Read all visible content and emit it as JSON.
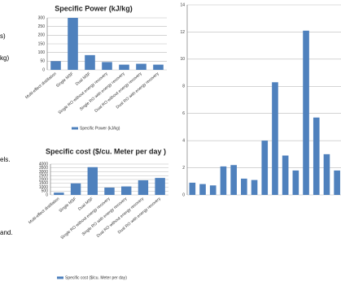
{
  "fragments": [
    "s)",
    "kg)",
    "els.",
    "and."
  ],
  "chart_data": [
    {
      "type": "bar",
      "title": "Specific Power (kJ/kg)",
      "legend": "Specific Power (kJ/kg)",
      "color": "#4f81bd",
      "grid": true,
      "categories": [
        "Multi-effect distillation",
        "Single MSF",
        "Dual MSF",
        "Single RO without energy recovery",
        "Single RO with energy recovery",
        "Dual RO without energy recovery",
        "Dual RO with energy recovery"
      ],
      "values": [
        50,
        300,
        85,
        45,
        30,
        35,
        30
      ],
      "ylim": [
        0,
        300
      ],
      "yticks": [
        0,
        50,
        100,
        150,
        200,
        250,
        300
      ]
    },
    {
      "type": "bar",
      "title": "Specific cost ($/cu. Meter per day )",
      "legend": "Specific cost ($/cu. Meter per day)",
      "color": "#4f81bd",
      "grid": true,
      "categories": [
        "Multi-effect distillation",
        "Single MSF",
        "Dual MSF",
        "Single RO without energy recovery",
        "Single RO with energy recovery",
        "Dual RO without energy recovery",
        "Dual RO with energy recovery"
      ],
      "values": [
        300,
        1500,
        3600,
        950,
        1100,
        1900,
        2200
      ],
      "ylim": [
        0,
        4000
      ],
      "yticks": [
        0,
        500,
        1000,
        1500,
        2000,
        2500,
        3000,
        3500,
        4000
      ]
    },
    {
      "type": "bar",
      "color": "#4f81bd",
      "grid": true,
      "categories": [
        null,
        null,
        null,
        null,
        null,
        null,
        null,
        null,
        null,
        null,
        null,
        null,
        null,
        null,
        null
      ],
      "values": [
        0.9,
        0.8,
        0.7,
        2.1,
        2.2,
        1.2,
        1.1,
        4.0,
        8.3,
        2.9,
        1.8,
        12.1,
        5.7,
        3.0,
        1.8
      ],
      "ylim": [
        0,
        14
      ],
      "yticks": [
        0,
        2,
        4,
        6,
        8,
        10,
        12,
        14
      ]
    }
  ]
}
